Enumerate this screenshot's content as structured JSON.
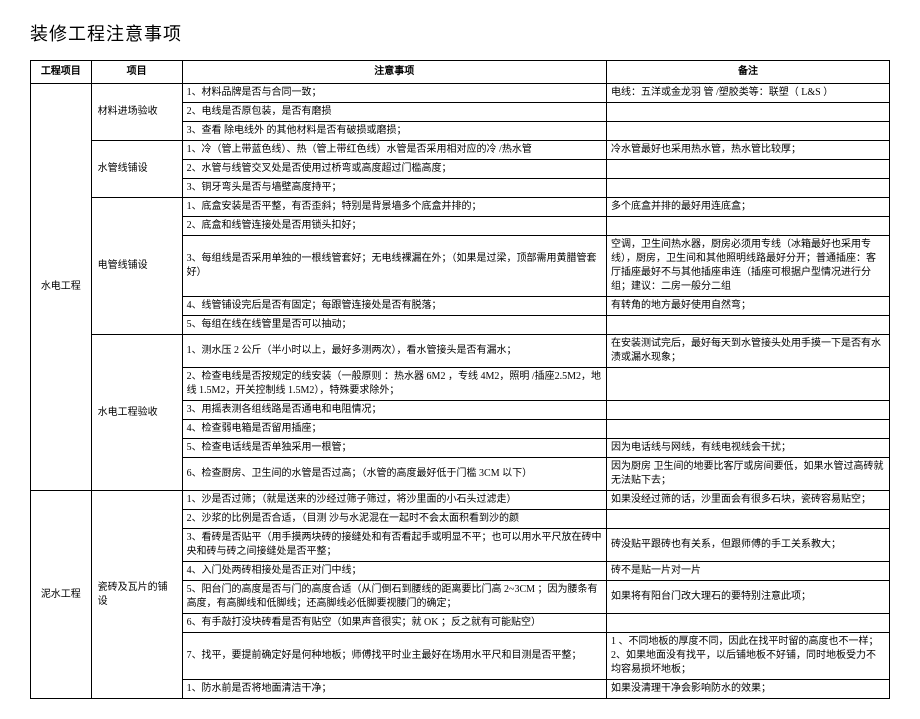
{
  "title": "装修工程注意事项",
  "headers": {
    "c1": "工程项目",
    "c2": "项目",
    "c3": "注意事项",
    "c4": "备注"
  },
  "sections": [
    {
      "category": "水电工程",
      "groups": [
        {
          "sub": "材料进场验收",
          "rows": [
            {
              "note": "1、材料品牌是否与合同一致；",
              "remark": "电线：五洋或金龙羽\n管 /塑胶类等：联塑（ L&S ）"
            },
            {
              "note": "2、电线是否原包装，是否有磨损",
              "remark": ""
            },
            {
              "note": "3、查看 除电线外 的其他材料是否有破损或磨损；",
              "remark": ""
            }
          ]
        },
        {
          "sub": "水管线铺设",
          "rows": [
            {
              "note": "1、冷（管上带蓝色线）、热（管上带红色线）水管是否采用相对应的冷         /热水管",
              "remark": "冷水管最好也采用热水管，热水管比较厚；"
            },
            {
              "note": "2、水管与线管交叉处是否使用过桥弯或高度超过门槛高度；",
              "remark": ""
            },
            {
              "note": "3、铜牙弯头是否与墙壁高度持平；",
              "remark": ""
            }
          ]
        },
        {
          "sub": "电管线铺设",
          "rows": [
            {
              "note": "1、底盒安装是否平整，有否歪斜；特别是背景墙多个底盒并排的；",
              "remark": "多个底盒并排的最好用连底盒；"
            },
            {
              "note": "2、底盒和线管连接处是否用锁头扣好；",
              "remark": ""
            },
            {
              "note": "3、每组线是否采用单独的一根线管套好；无电线裸漏在外；（如果是过梁，顶部需用黄腊管套好）",
              "remark": "空调，卫生间热水器，厨房必须用专线（冰箱最好也采用专线），厨房，卫生间和其他照明线路最好分开；普通插座：客厅插座最好不与其他插座串连（插座可根据户型情况进行分组；建议：二房一般分二组"
            },
            {
              "note": "4、线管铺设完后是否有固定；每跟管连接处是否有脱落；",
              "remark": "有转角的地方最好使用自然弯；"
            },
            {
              "note": "5、每组在线在线管里是否可以抽动；",
              "remark": ""
            }
          ]
        },
        {
          "sub": "水电工程验收",
          "rows": [
            {
              "note": "1、测水压 2 公斤（半小时以上，最好多测两次），看水管接头是否有漏水；",
              "remark": "在安装测试完后，最好每天到水管接头处用手摸一下是否有水渍或漏水现象；"
            },
            {
              "note": "2、检查电线是否按规定的线安装（一般原则    ：热水器 6M2 ，专线 4M2，照明 /插座2.5M2，地线 1.5M2，开关控制线  1.5M2），特殊要求除外；",
              "remark": ""
            },
            {
              "note": "3、用摇表测各组线路是否通电和电阻情况；",
              "remark": ""
            },
            {
              "note": "4、检查弱电箱是否留用插座；",
              "remark": ""
            },
            {
              "note": "5、检查电话线是否单独采用一根管；",
              "remark": "因为电话线与网线，有线电视线会干扰；"
            },
            {
              "note": "6、检查厨房、卫生间的水管是否过高；（水管的高度最好低于门槛           3CM 以下）",
              "remark": "因为厨房 卫生间的地要比客厅或房间要低，如果水管过高砖就无法贴下去；"
            }
          ]
        }
      ]
    },
    {
      "category": "泥水工程",
      "groups": [
        {
          "sub": "瓷砖及瓦片的铺设",
          "rows": [
            {
              "note": "1、沙是否过筛；（就是送来的沙经过筛子筛过，将沙里面的小石头过滤走）",
              "remark": "如果没经过筛的话，沙里面会有很多石块，瓷砖容易贴空；"
            },
            {
              "note": "2、沙浆的比例是否合适，（目测  沙与水泥混在一起时不会太面积看到沙的颜",
              "remark": ""
            },
            {
              "note": "3、看砖是否贴平（用手摸两块砖的接缝处和有否看起手或明显不平；也可以用水平尺放在砖中央和砖与砖之间接缝处是否平整；",
              "remark": "砖没贴平跟砖也有关系，但跟师傅的手工关系教大；"
            },
            {
              "note": "4、入门处两砖相接处是否正对门中线；",
              "remark": "砖不是贴一片对一片"
            },
            {
              "note": "5、阳台门的高度是否与门的高度合适（从门倒石到腰线的距离要比门高        2~3CM ；因为腰条有高度，有高脚线和低脚线；还高脚线必低脚要视腰门的确定；",
              "remark": "如果将有阳台门改大理石的要特别注意此项；"
            },
            {
              "note": "6、有手敲打没块砖看是否有贴空（如果声音很实；就       OK ；反之就有可能贴空）",
              "remark": ""
            },
            {
              "note": "7、找平，要提前确定好是何种地板；师傅找平时业主最好在场用水平尺和目测是否平整；",
              "remark": "1 、不同地板的厚度不同，因此在找平时留的高度也不一样； 2、如果地面没有找平，以后铺地板不好铺，同时地板受力不均容易损坏地板；"
            },
            {
              "note": "1、防水前是否将地面清洁干净；",
              "remark": "如果没清理干净会影响防水的效果；"
            }
          ]
        }
      ]
    }
  ]
}
